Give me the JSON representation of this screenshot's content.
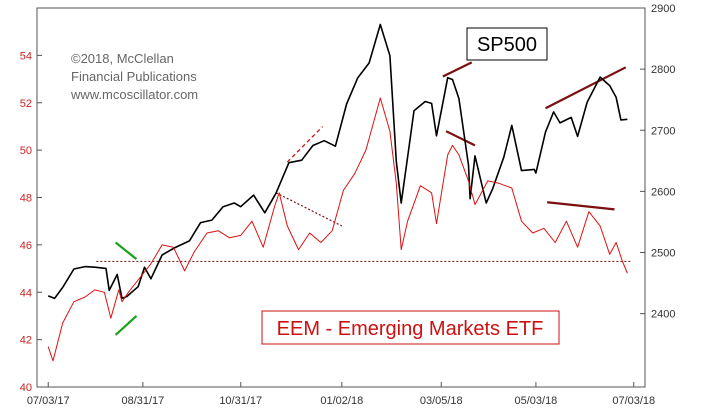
{
  "chart_data": {
    "type": "line",
    "title": "",
    "xlabel": "",
    "x_tick_labels": [
      "07/03/17",
      "08/31/17",
      "10/31/17",
      "01/02/18",
      "03/05/18",
      "05/03/18",
      "07/03/18"
    ],
    "x_range": [
      "2017-06-26",
      "2018-07-10"
    ],
    "y_left": {
      "label": "",
      "ylim": [
        40,
        56
      ],
      "ticks": [
        40,
        42,
        44,
        46,
        48,
        50,
        52,
        54
      ],
      "color": "#cc2222"
    },
    "y_right": {
      "label": "",
      "ylim": [
        2280,
        2900
      ],
      "ticks": [
        2400,
        2500,
        2600,
        2700,
        2800,
        2900
      ]
    },
    "grid": false,
    "colors": {
      "sp500": "#000000",
      "eem": "#dd1111",
      "support_line": "#7a2a2a",
      "bearish_trendline": "#7a1010",
      "bullish_trendline": "#1aa01a"
    },
    "series": [
      {
        "name": "SP500",
        "axis": "right",
        "points": [
          [
            "2017-07-03",
            2429
          ],
          [
            "2017-07-07",
            2425
          ],
          [
            "2017-07-12",
            2443
          ],
          [
            "2017-07-19",
            2473
          ],
          [
            "2017-07-26",
            2477
          ],
          [
            "2017-08-01",
            2476
          ],
          [
            "2017-08-08",
            2474
          ],
          [
            "2017-08-10",
            2438
          ],
          [
            "2017-08-15",
            2464
          ],
          [
            "2017-08-18",
            2425
          ],
          [
            "2017-08-21",
            2428
          ],
          [
            "2017-08-28",
            2444
          ],
          [
            "2017-09-01",
            2476
          ],
          [
            "2017-09-05",
            2457
          ],
          [
            "2017-09-12",
            2496
          ],
          [
            "2017-09-20",
            2508
          ],
          [
            "2017-09-29",
            2519
          ],
          [
            "2017-10-06",
            2549
          ],
          [
            "2017-10-13",
            2553
          ],
          [
            "2017-10-20",
            2575
          ],
          [
            "2017-10-27",
            2581
          ],
          [
            "2017-10-31",
            2575
          ],
          [
            "2017-11-08",
            2594
          ],
          [
            "2017-11-15",
            2565
          ],
          [
            "2017-11-22",
            2597
          ],
          [
            "2017-11-30",
            2647
          ],
          [
            "2017-12-08",
            2651
          ],
          [
            "2017-12-15",
            2675
          ],
          [
            "2017-12-22",
            2683
          ],
          [
            "2017-12-29",
            2674
          ],
          [
            "2018-01-05",
            2743
          ],
          [
            "2018-01-12",
            2786
          ],
          [
            "2018-01-19",
            2810
          ],
          [
            "2018-01-26",
            2873
          ],
          [
            "2018-02-01",
            2822
          ],
          [
            "2018-02-05",
            2649
          ],
          [
            "2018-02-08",
            2581
          ],
          [
            "2018-02-12",
            2656
          ],
          [
            "2018-02-16",
            2732
          ],
          [
            "2018-02-23",
            2747
          ],
          [
            "2018-02-27",
            2744
          ],
          [
            "2018-03-02",
            2691
          ],
          [
            "2018-03-09",
            2786
          ],
          [
            "2018-03-12",
            2783
          ],
          [
            "2018-03-16",
            2752
          ],
          [
            "2018-03-22",
            2643
          ],
          [
            "2018-03-23",
            2588
          ],
          [
            "2018-03-26",
            2658
          ],
          [
            "2018-04-02",
            2581
          ],
          [
            "2018-04-06",
            2604
          ],
          [
            "2018-04-13",
            2656
          ],
          [
            "2018-04-18",
            2708
          ],
          [
            "2018-04-24",
            2634
          ],
          [
            "2018-05-02",
            2636
          ],
          [
            "2018-05-03",
            2630
          ],
          [
            "2018-05-09",
            2697
          ],
          [
            "2018-05-14",
            2730
          ],
          [
            "2018-05-18",
            2712
          ],
          [
            "2018-05-25",
            2721
          ],
          [
            "2018-05-29",
            2690
          ],
          [
            "2018-06-04",
            2746
          ],
          [
            "2018-06-12",
            2787
          ],
          [
            "2018-06-18",
            2773
          ],
          [
            "2018-06-22",
            2754
          ],
          [
            "2018-06-25",
            2717
          ],
          [
            "2018-06-29",
            2718
          ]
        ]
      },
      {
        "name": "EEM - Emerging Markets ETF",
        "axis": "left",
        "points": [
          [
            "2017-07-03",
            41.7
          ],
          [
            "2017-07-06",
            41.1
          ],
          [
            "2017-07-12",
            42.7
          ],
          [
            "2017-07-19",
            43.6
          ],
          [
            "2017-07-26",
            43.8
          ],
          [
            "2017-08-01",
            44.1
          ],
          [
            "2017-08-07",
            44.0
          ],
          [
            "2017-08-11",
            42.9
          ],
          [
            "2017-08-16",
            44.1
          ],
          [
            "2017-08-18",
            43.6
          ],
          [
            "2017-08-22",
            44.0
          ],
          [
            "2017-08-29",
            44.6
          ],
          [
            "2017-09-05",
            45.2
          ],
          [
            "2017-09-12",
            46.0
          ],
          [
            "2017-09-19",
            45.9
          ],
          [
            "2017-09-26",
            44.9
          ],
          [
            "2017-10-02",
            45.7
          ],
          [
            "2017-10-10",
            46.5
          ],
          [
            "2017-10-17",
            46.6
          ],
          [
            "2017-10-24",
            46.3
          ],
          [
            "2017-10-31",
            46.4
          ],
          [
            "2017-11-07",
            47.0
          ],
          [
            "2017-11-14",
            45.9
          ],
          [
            "2017-11-21",
            47.6
          ],
          [
            "2017-11-24",
            48.2
          ],
          [
            "2017-11-29",
            46.8
          ],
          [
            "2017-12-06",
            45.8
          ],
          [
            "2017-12-13",
            46.5
          ],
          [
            "2017-12-20",
            46.1
          ],
          [
            "2017-12-27",
            46.6
          ],
          [
            "2018-01-03",
            48.3
          ],
          [
            "2018-01-10",
            49.0
          ],
          [
            "2018-01-17",
            50.0
          ],
          [
            "2018-01-26",
            52.2
          ],
          [
            "2018-02-01",
            50.8
          ],
          [
            "2018-02-05",
            48.6
          ],
          [
            "2018-02-08",
            45.8
          ],
          [
            "2018-02-12",
            47.0
          ],
          [
            "2018-02-20",
            48.5
          ],
          [
            "2018-02-27",
            48.2
          ],
          [
            "2018-03-02",
            46.9
          ],
          [
            "2018-03-09",
            49.8
          ],
          [
            "2018-03-12",
            50.2
          ],
          [
            "2018-03-16",
            49.8
          ],
          [
            "2018-03-22",
            48.7
          ],
          [
            "2018-03-26",
            47.7
          ],
          [
            "2018-04-03",
            48.7
          ],
          [
            "2018-04-10",
            48.6
          ],
          [
            "2018-04-18",
            48.4
          ],
          [
            "2018-04-24",
            47.0
          ],
          [
            "2018-05-01",
            46.5
          ],
          [
            "2018-05-08",
            46.7
          ],
          [
            "2018-05-15",
            46.1
          ],
          [
            "2018-05-22",
            47.0
          ],
          [
            "2018-05-29",
            45.9
          ],
          [
            "2018-06-05",
            47.4
          ],
          [
            "2018-06-12",
            46.8
          ],
          [
            "2018-06-18",
            45.6
          ],
          [
            "2018-06-22",
            46.1
          ],
          [
            "2018-06-26",
            45.3
          ],
          [
            "2018-06-29",
            44.8
          ]
        ]
      }
    ],
    "annotations": [
      {
        "type": "dotted_line",
        "axis": "left",
        "from": [
          "2017-08-02",
          45.3
        ],
        "to": [
          "2018-07-02",
          45.3
        ],
        "color": "#7a2a2a"
      },
      {
        "type": "dashed_line",
        "axis": "right",
        "from": [
          "2017-11-29",
          2648
        ],
        "to": [
          "2017-12-21",
          2706
        ],
        "color": "#cc1111"
      },
      {
        "type": "dotted_line",
        "axis": "left",
        "from": [
          "2017-11-22",
          48.2
        ],
        "to": [
          "2018-01-02",
          46.8
        ],
        "color": "#7a1010"
      },
      {
        "type": "solid_line",
        "axis": "right",
        "from": [
          "2018-03-06",
          2788
        ],
        "to": [
          "2018-03-24",
          2811
        ],
        "color": "#7a1010"
      },
      {
        "type": "solid_line",
        "axis": "left",
        "from": [
          "2018-03-08",
          50.8
        ],
        "to": [
          "2018-03-26",
          50.2
        ],
        "color": "#7a1010"
      },
      {
        "type": "solid_line",
        "axis": "right",
        "from": [
          "2018-05-09",
          2736
        ],
        "to": [
          "2018-06-28",
          2803
        ],
        "color": "#7a1010"
      },
      {
        "type": "solid_line",
        "axis": "left",
        "from": [
          "2018-05-10",
          47.8
        ],
        "to": [
          "2018-06-21",
          47.5
        ],
        "color": "#7a1010"
      },
      {
        "type": "solid_line",
        "axis": "left",
        "from": [
          "2017-08-14",
          46.1
        ],
        "to": [
          "2017-08-27",
          45.4
        ],
        "color": "#1aa01a"
      },
      {
        "type": "solid_line",
        "axis": "left",
        "from": [
          "2017-08-14",
          42.2
        ],
        "to": [
          "2017-08-27",
          43.0
        ],
        "color": "#1aa01a"
      }
    ],
    "text_labels": {
      "credit_line1": "©2018, McClellan",
      "credit_line2": "Financial Publications",
      "credit_line3": "www.mcoscillator.com",
      "sp500_label": "SP500",
      "eem_label": "EEM - Emerging Markets ETF"
    }
  }
}
